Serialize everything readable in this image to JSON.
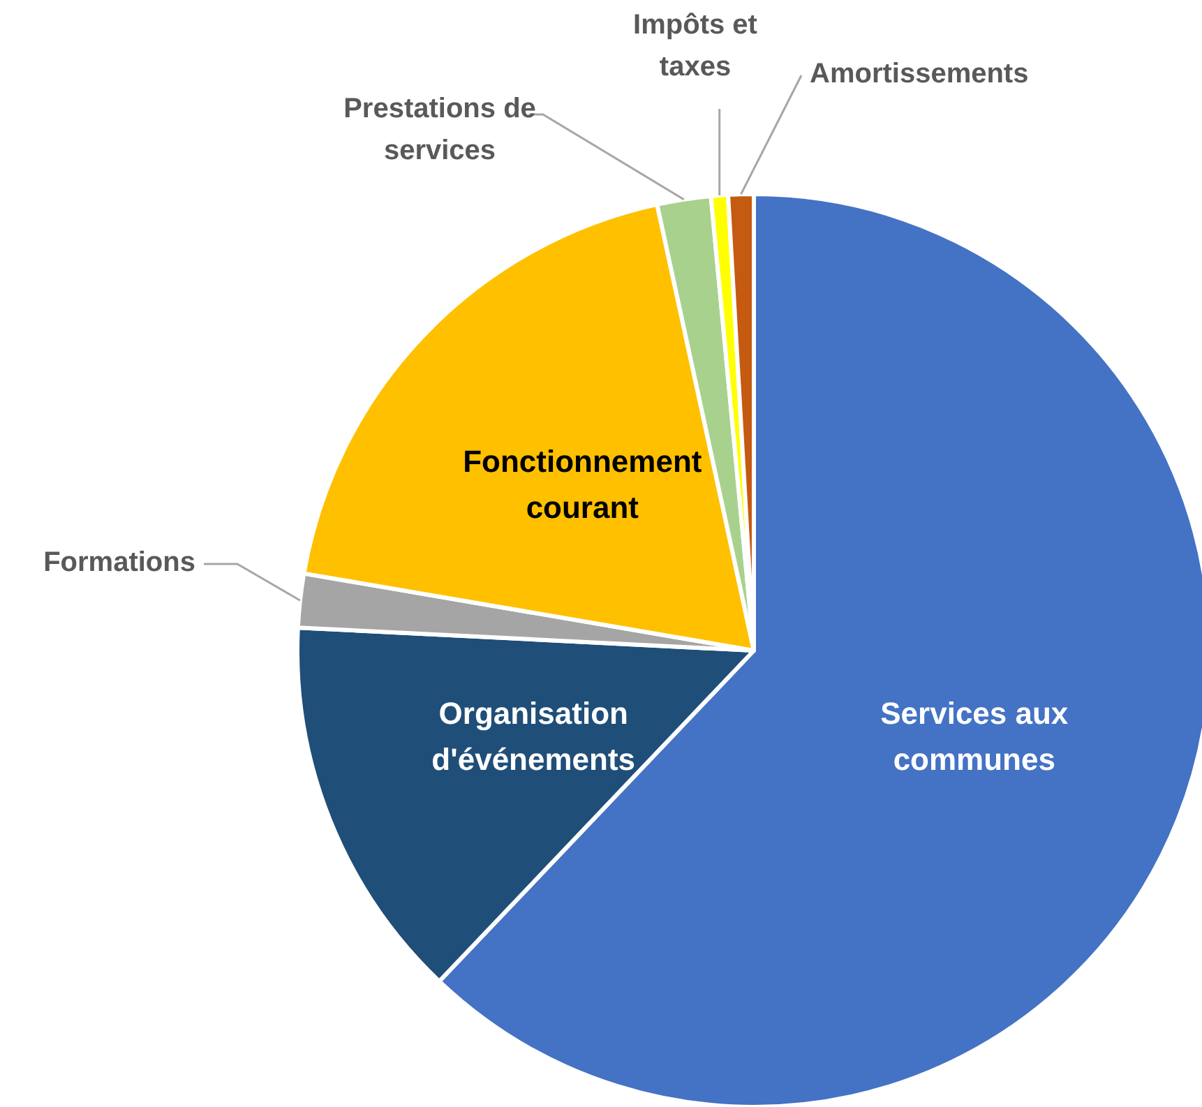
{
  "chart_data": {
    "type": "pie",
    "categories": [
      "Services aux communes",
      "Organisation d'événements",
      "Formations",
      "Fonctionnement courant",
      "Prestations de services",
      "Impôts et taxes",
      "Amortissements"
    ],
    "values": [
      62.1,
      13.7,
      1.9,
      18.9,
      1.9,
      0.6,
      0.9
    ],
    "colors": [
      "#4472c4",
      "#1f4e79",
      "#a5a5a5",
      "#ffc000",
      "#a9d18e",
      "#ffff00",
      "#c55a11"
    ]
  }
}
